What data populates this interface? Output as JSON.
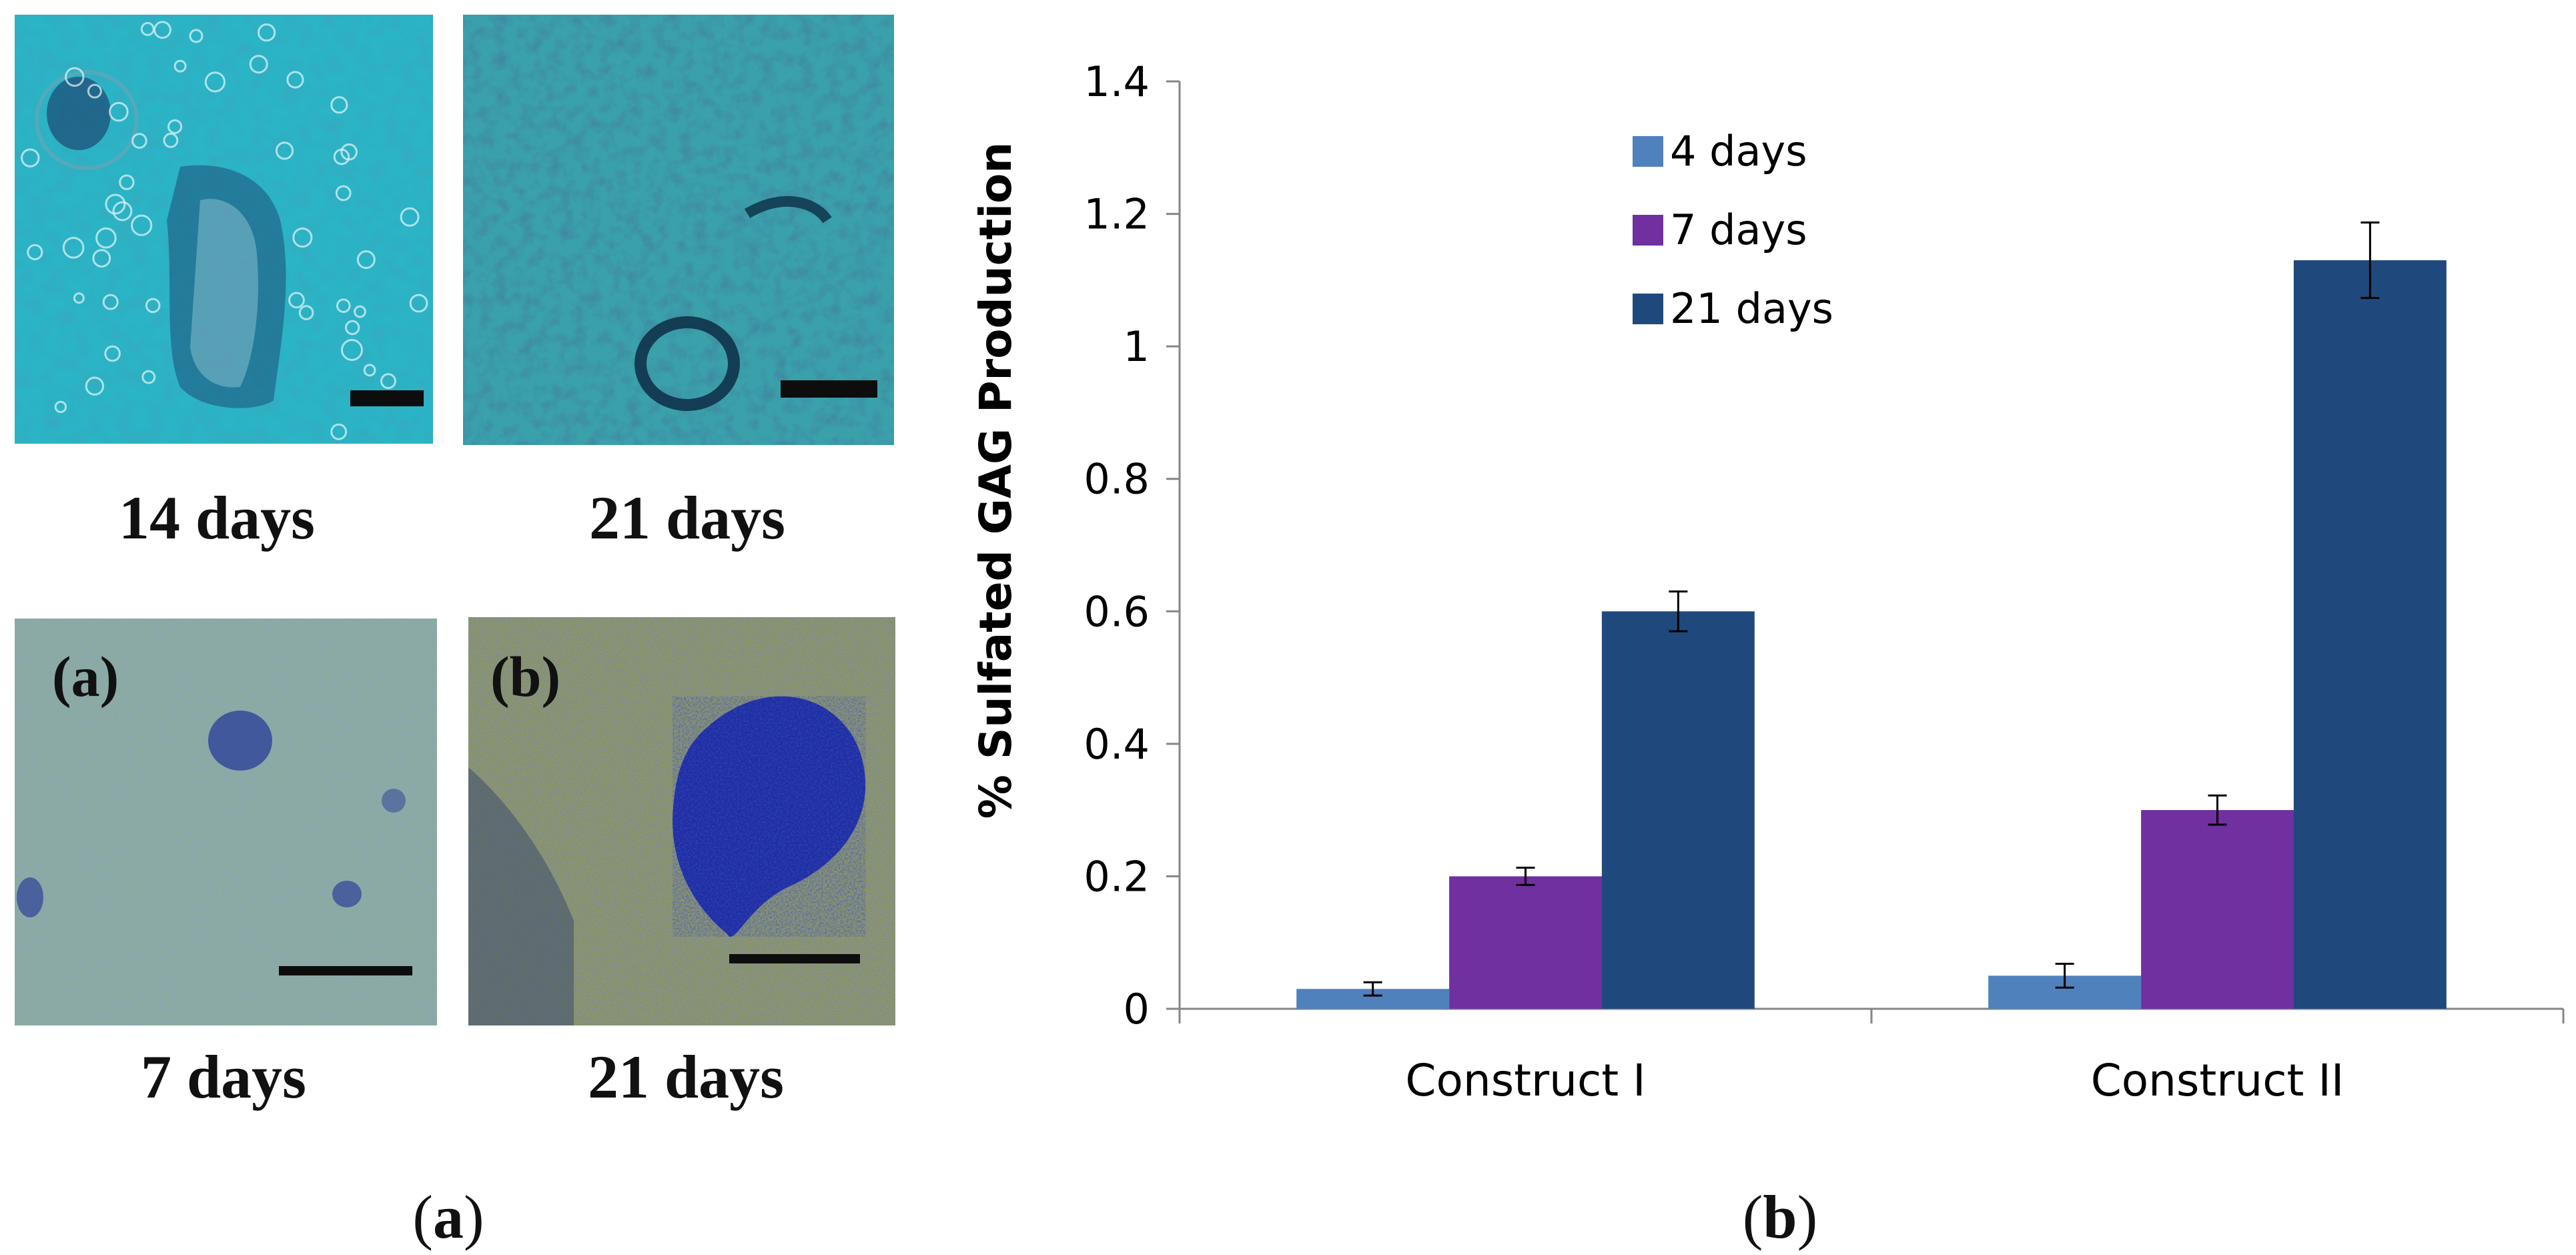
{
  "panel_a": {
    "label_prefix": "(",
    "label_letter": "a",
    "label_suffix": ")",
    "micrographs": [
      {
        "caption": "14 days",
        "overlay_label": "",
        "colors": {
          "bg": "#2ab4c6",
          "blob": "#1e4f78",
          "dot": "#e6f6f9"
        }
      },
      {
        "caption": "21 days",
        "overlay_label": "",
        "colors": {
          "bg": "#3aa1ab",
          "blob": "#154866",
          "dot": "#7ed8df"
        }
      },
      {
        "caption": "7 days",
        "overlay_label": "(a)",
        "colors": {
          "bg": "#89ae9d",
          "blob": "#3a4f9b",
          "dot": "#c6d7a6"
        }
      },
      {
        "caption": "21 days",
        "overlay_label": "(b)",
        "colors": {
          "bg": "#8f9960",
          "blob": "#1828a8",
          "dot": "#c9d266"
        }
      }
    ]
  },
  "panel_b": {
    "label_prefix": "(",
    "label_letter": "b",
    "label_suffix": ")"
  },
  "chart_data": {
    "type": "bar",
    "title": "",
    "xlabel": "",
    "ylabel": "% Sulfated GAG Production",
    "categories": [
      "Construct I",
      "Construct II"
    ],
    "series": [
      {
        "name": "4 days",
        "color": "#4f81bd",
        "values": [
          0.03,
          0.05
        ],
        "errors": [
          0.01,
          0.018
        ]
      },
      {
        "name": "7 days",
        "color": "#7030a0",
        "values": [
          0.2,
          0.3
        ],
        "errors": [
          0.013,
          0.022
        ]
      },
      {
        "name": "21 days",
        "color": "#1f497d",
        "values": [
          0.6,
          1.13
        ],
        "errors": [
          0.03,
          0.057
        ]
      }
    ],
    "ylim": [
      0,
      1.4
    ],
    "yticks": [
      "0",
      "0.2",
      "0.4",
      "0.6",
      "0.8",
      "1",
      "1.2",
      "1.4"
    ],
    "grid": false,
    "legend": "top-left inside plot"
  }
}
